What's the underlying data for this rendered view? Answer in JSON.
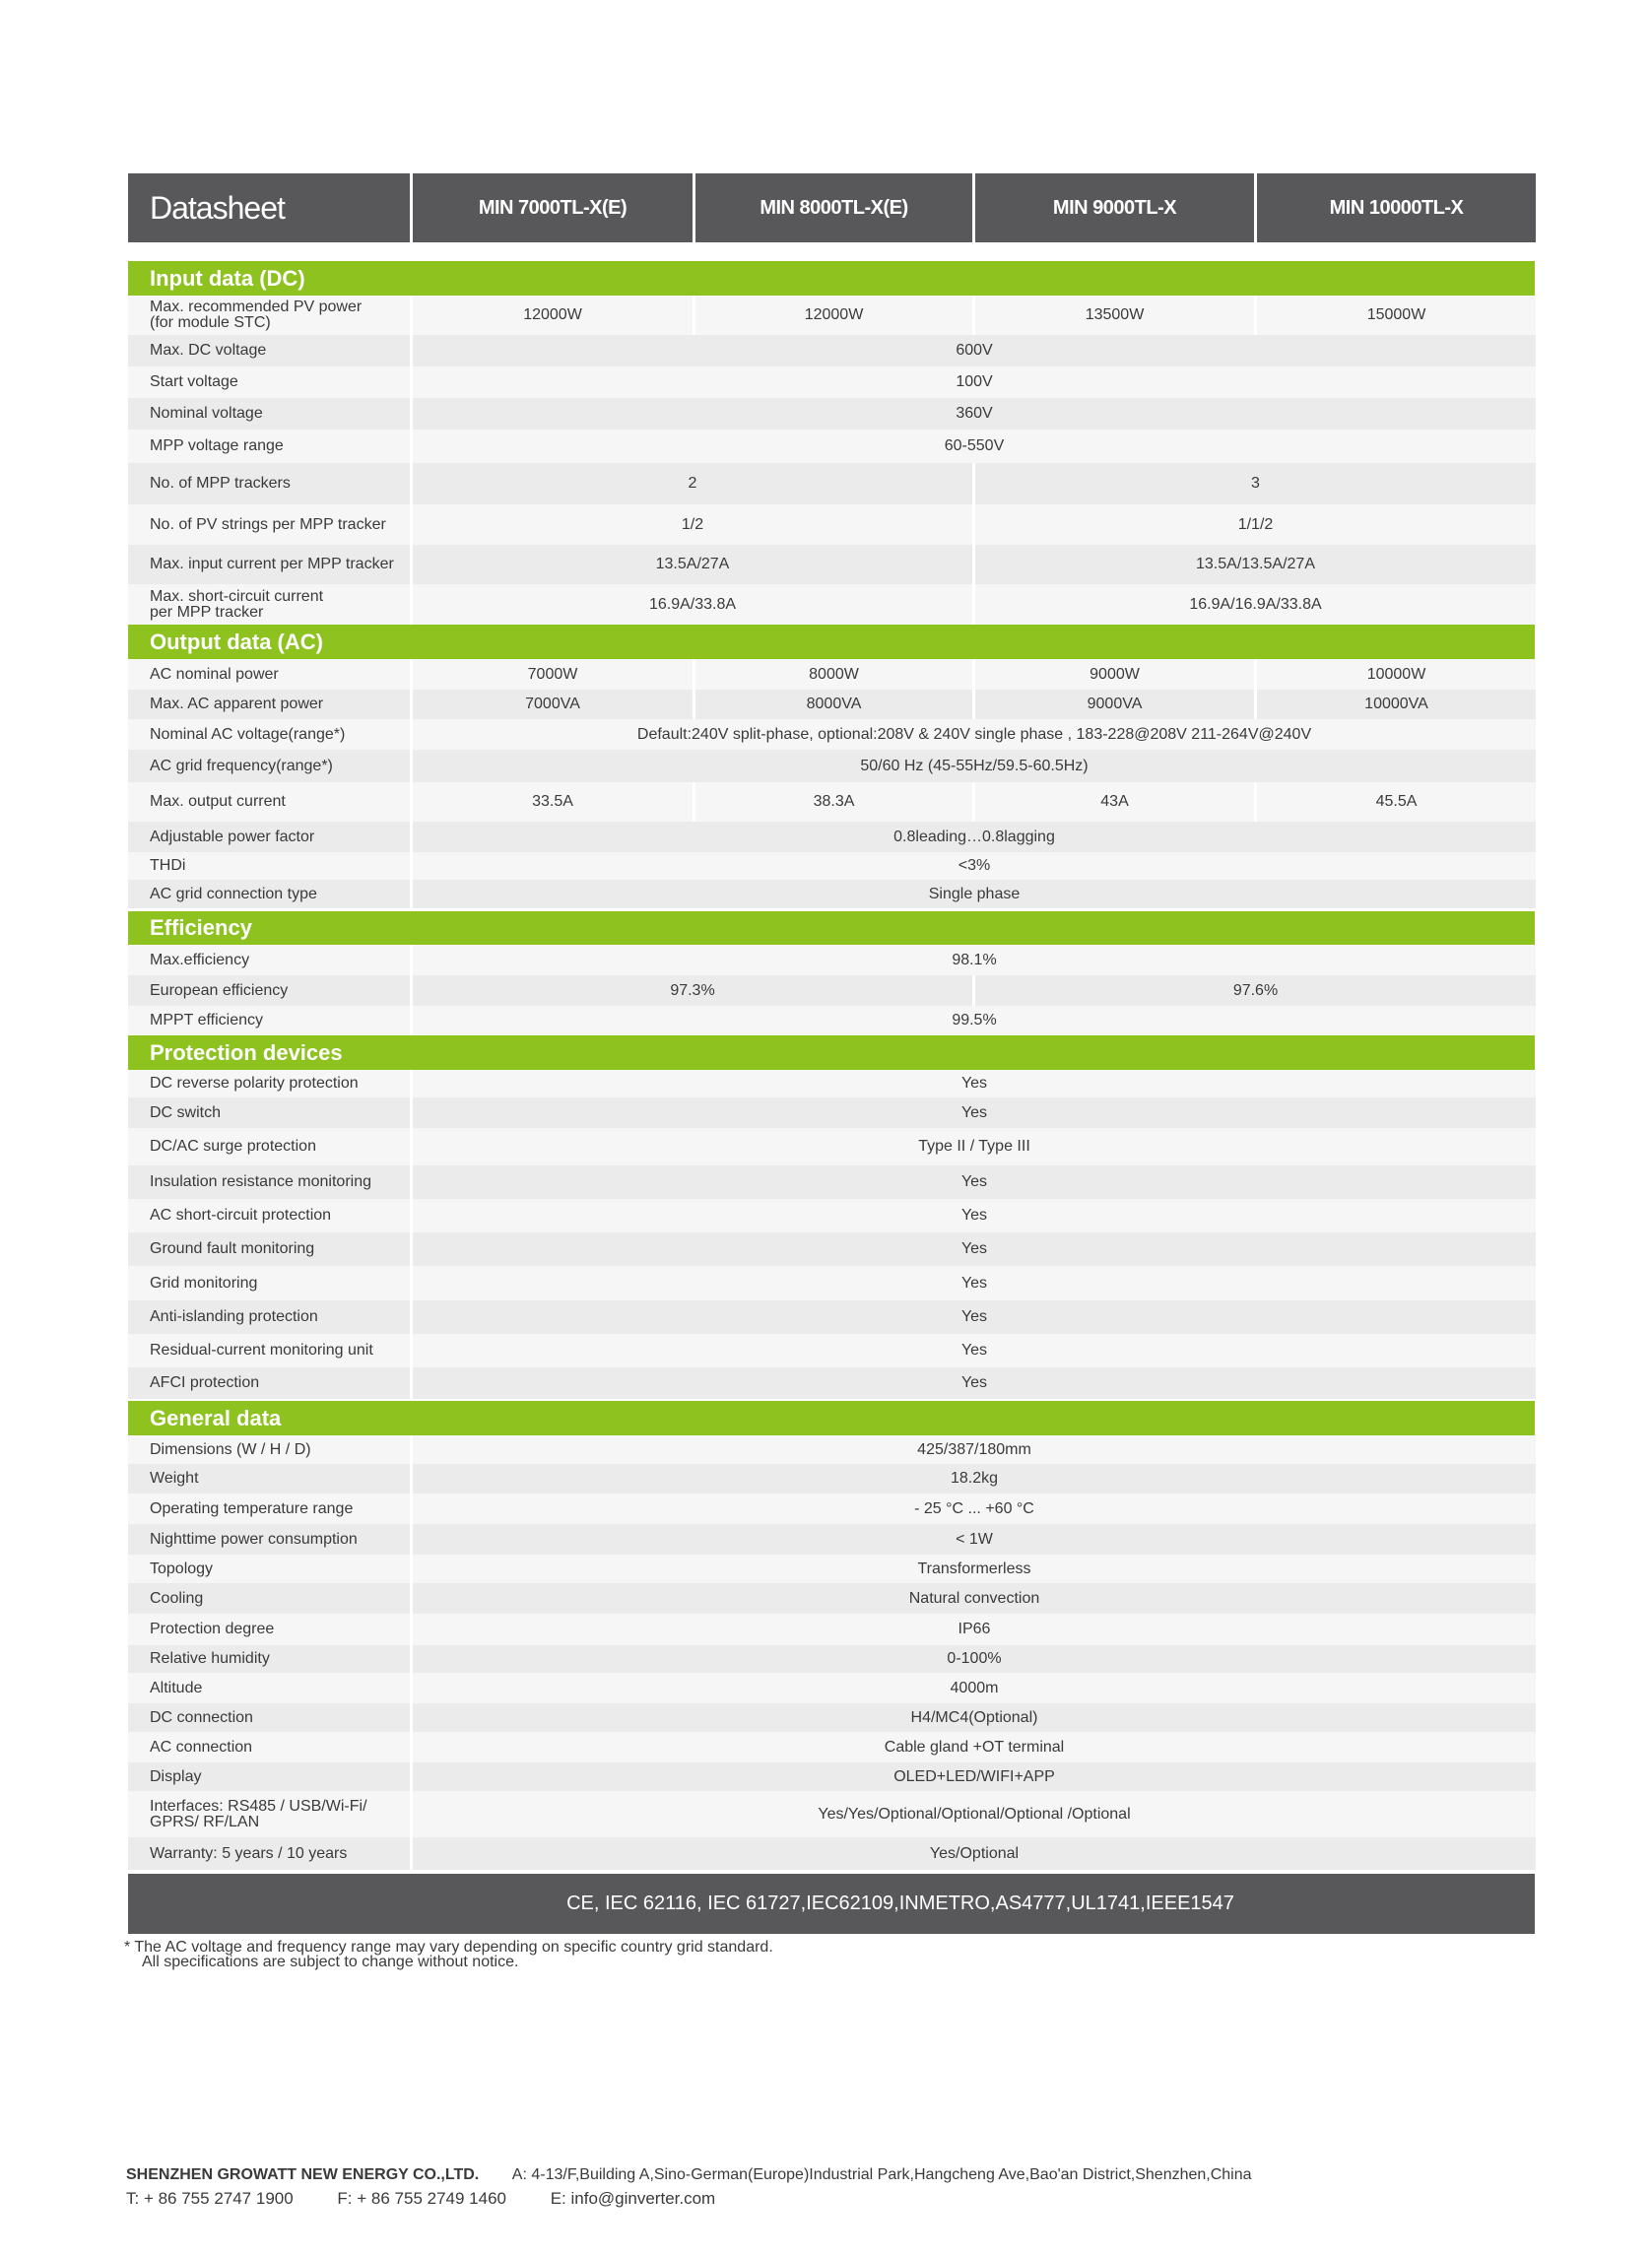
{
  "header": {
    "title": "Datasheet",
    "models": [
      "MIN 7000TL-X(E)",
      "MIN 8000TL-X(E)",
      "MIN 9000TL-X",
      "MIN 10000TL-X"
    ]
  },
  "colors": {
    "section_green": "#8dc21f",
    "header_gray": "#58585a"
  },
  "sections": [
    {
      "title": "Input data (DC)",
      "rows": [
        {
          "label": "Max. recommended PV power\n(for module STC)",
          "values": [
            {
              "text": "12000W",
              "span": 1
            },
            {
              "text": "12000W",
              "span": 1
            },
            {
              "text": "13500W",
              "span": 1
            },
            {
              "text": "15000W",
              "span": 1
            }
          ]
        },
        {
          "label": "Max. DC voltage",
          "values": [
            {
              "text": "600V",
              "span": 4
            }
          ]
        },
        {
          "label": "Start voltage",
          "values": [
            {
              "text": "100V",
              "span": 4
            }
          ]
        },
        {
          "label": "Nominal voltage",
          "values": [
            {
              "text": "360V",
              "span": 4
            }
          ]
        },
        {
          "label": "MPP voltage range",
          "values": [
            {
              "text": "60-550V",
              "span": 4
            }
          ]
        },
        {
          "label": "No. of MPP trackers",
          "values": [
            {
              "text": "2",
              "span": 2
            },
            {
              "text": "3",
              "span": 2
            }
          ]
        },
        {
          "label": "No. of PV strings per MPP tracker",
          "values": [
            {
              "text": "1/2",
              "span": 2
            },
            {
              "text": "1/1/2",
              "span": 2
            }
          ]
        },
        {
          "label": "Max. input current per MPP tracker",
          "values": [
            {
              "text": "13.5A/27A",
              "span": 2
            },
            {
              "text": "13.5A/13.5A/27A",
              "span": 2
            }
          ]
        },
        {
          "label": "Max. short-circuit current\nper MPP tracker",
          "values": [
            {
              "text": "16.9A/33.8A",
              "span": 2
            },
            {
              "text": "16.9A/16.9A/33.8A",
              "span": 2
            }
          ]
        }
      ]
    },
    {
      "title": "Output data (AC)",
      "rows": [
        {
          "label": "AC nominal power",
          "values": [
            {
              "text": "7000W",
              "span": 1
            },
            {
              "text": "8000W",
              "span": 1
            },
            {
              "text": "9000W",
              "span": 1
            },
            {
              "text": "10000W",
              "span": 1
            }
          ]
        },
        {
          "label": "Max. AC apparent power",
          "values": [
            {
              "text": "7000VA",
              "span": 1
            },
            {
              "text": "8000VA",
              "span": 1
            },
            {
              "text": "9000VA",
              "span": 1
            },
            {
              "text": "10000VA",
              "span": 1
            }
          ]
        },
        {
          "label": "Nominal AC voltage(range*)",
          "values": [
            {
              "text": "Default:240V split-phase, optional:208V & 240V single phase , 183-228@208V 211-264V@240V",
              "span": 4
            }
          ]
        },
        {
          "label": "AC grid frequency(range*)",
          "values": [
            {
              "text": "50/60 Hz (45-55Hz/59.5-60.5Hz)",
              "span": 4
            }
          ]
        },
        {
          "label": "Max. output current",
          "values": [
            {
              "text": "33.5A",
              "span": 1
            },
            {
              "text": "38.3A",
              "span": 1
            },
            {
              "text": "43A",
              "span": 1
            },
            {
              "text": "45.5A",
              "span": 1
            }
          ]
        },
        {
          "label": "Adjustable power factor",
          "values": [
            {
              "text": "0.8leading…0.8lagging",
              "span": 4
            }
          ]
        },
        {
          "label": "THDi",
          "values": [
            {
              "text": "<3%",
              "span": 4
            }
          ]
        },
        {
          "label": "AC grid connection type",
          "values": [
            {
              "text": "Single phase",
              "span": 4
            }
          ]
        }
      ]
    },
    {
      "title": "Efficiency",
      "rows": [
        {
          "label": "Max.efficiency",
          "values": [
            {
              "text": "98.1%",
              "span": 4
            }
          ]
        },
        {
          "label": "European efficiency",
          "values": [
            {
              "text": "97.3%",
              "span": 2
            },
            {
              "text": "97.6%",
              "span": 2
            }
          ]
        },
        {
          "label": "MPPT efficiency",
          "values": [
            {
              "text": "99.5%",
              "span": 4
            }
          ]
        }
      ]
    },
    {
      "title": "Protection devices",
      "rows": [
        {
          "label": "DC reverse polarity protection",
          "values": [
            {
              "text": "Yes",
              "span": 4
            }
          ]
        },
        {
          "label": "DC switch",
          "values": [
            {
              "text": "Yes",
              "span": 4
            }
          ]
        },
        {
          "label": "DC/AC surge protection",
          "values": [
            {
              "text": "Type II / Type III",
              "span": 4
            }
          ]
        },
        {
          "label": "Insulation resistance monitoring",
          "values": [
            {
              "text": "Yes",
              "span": 4
            }
          ]
        },
        {
          "label": "AC short-circuit protection",
          "values": [
            {
              "text": "Yes",
              "span": 4
            }
          ]
        },
        {
          "label": "Ground fault monitoring",
          "values": [
            {
              "text": "Yes",
              "span": 4
            }
          ]
        },
        {
          "label": "Grid monitoring",
          "values": [
            {
              "text": "Yes",
              "span": 4
            }
          ]
        },
        {
          "label": "Anti-islanding protection",
          "values": [
            {
              "text": "Yes",
              "span": 4
            }
          ]
        },
        {
          "label": "Residual-current monitoring unit",
          "values": [
            {
              "text": "Yes",
              "span": 4
            }
          ]
        },
        {
          "label": "AFCI protection",
          "values": [
            {
              "text": "Yes",
              "span": 4
            }
          ]
        }
      ]
    },
    {
      "title": "General data",
      "rows": [
        {
          "label": "Dimensions (W / H / D)",
          "values": [
            {
              "text": "425/387/180mm",
              "span": 4
            }
          ]
        },
        {
          "label": "Weight",
          "values": [
            {
              "text": "18.2kg",
              "span": 4
            }
          ]
        },
        {
          "label": "Operating temperature range",
          "values": [
            {
              "text": "- 25 °C ... +60 °C",
              "span": 4
            }
          ]
        },
        {
          "label": "Nighttime power consumption",
          "values": [
            {
              "text": "< 1W",
              "span": 4
            }
          ]
        },
        {
          "label": "Topology",
          "values": [
            {
              "text": "Transformerless",
              "span": 4
            }
          ]
        },
        {
          "label": "Cooling",
          "values": [
            {
              "text": "Natural convection",
              "span": 4
            }
          ]
        },
        {
          "label": "Protection degree",
          "values": [
            {
              "text": "IP66",
              "span": 4
            }
          ]
        },
        {
          "label": "Relative humidity",
          "values": [
            {
              "text": "0-100%",
              "span": 4
            }
          ]
        },
        {
          "label": "Altitude",
          "values": [
            {
              "text": "4000m",
              "span": 4
            }
          ]
        },
        {
          "label": "DC connection",
          "values": [
            {
              "text": "H4/MC4(Optional)",
              "span": 4
            }
          ]
        },
        {
          "label": "AC connection",
          "values": [
            {
              "text": "Cable gland +OT terminal",
              "span": 4
            }
          ]
        },
        {
          "label": "Display",
          "values": [
            {
              "text": "OLED+LED/WIFI+APP",
              "span": 4
            }
          ]
        },
        {
          "label": "Interfaces: RS485 / USB/Wi-Fi/\nGPRS/ RF/LAN",
          "values": [
            {
              "text": "Yes/Yes/Optional/Optional/Optional /Optional",
              "span": 4
            }
          ]
        },
        {
          "label": "Warranty: 5 years / 10 years",
          "values": [
            {
              "text": "Yes/Optional",
              "span": 4
            }
          ]
        }
      ]
    }
  ],
  "certifications": "CE, IEC 62116, IEC 61727,IEC62109,INMETRO,AS4777,UL1741,IEEE1547",
  "footnote": {
    "line1": "* The AC voltage and frequency range may vary depending on specific country grid standard.",
    "line2": "All specifications are subject to change without notice."
  },
  "footer": {
    "company": "SHENZHEN GROWATT NEW ENERGY CO.,LTD.",
    "address": "A: 4-13/F,Building A,Sino-German(Europe)Industrial Park,Hangcheng Ave,Bao'an District,Shenzhen,China",
    "phone": "T:  + 86 755 2747 1900",
    "fax": "F:  + 86 755 2749 1460",
    "email": "E:  info@ginverter.com"
  }
}
